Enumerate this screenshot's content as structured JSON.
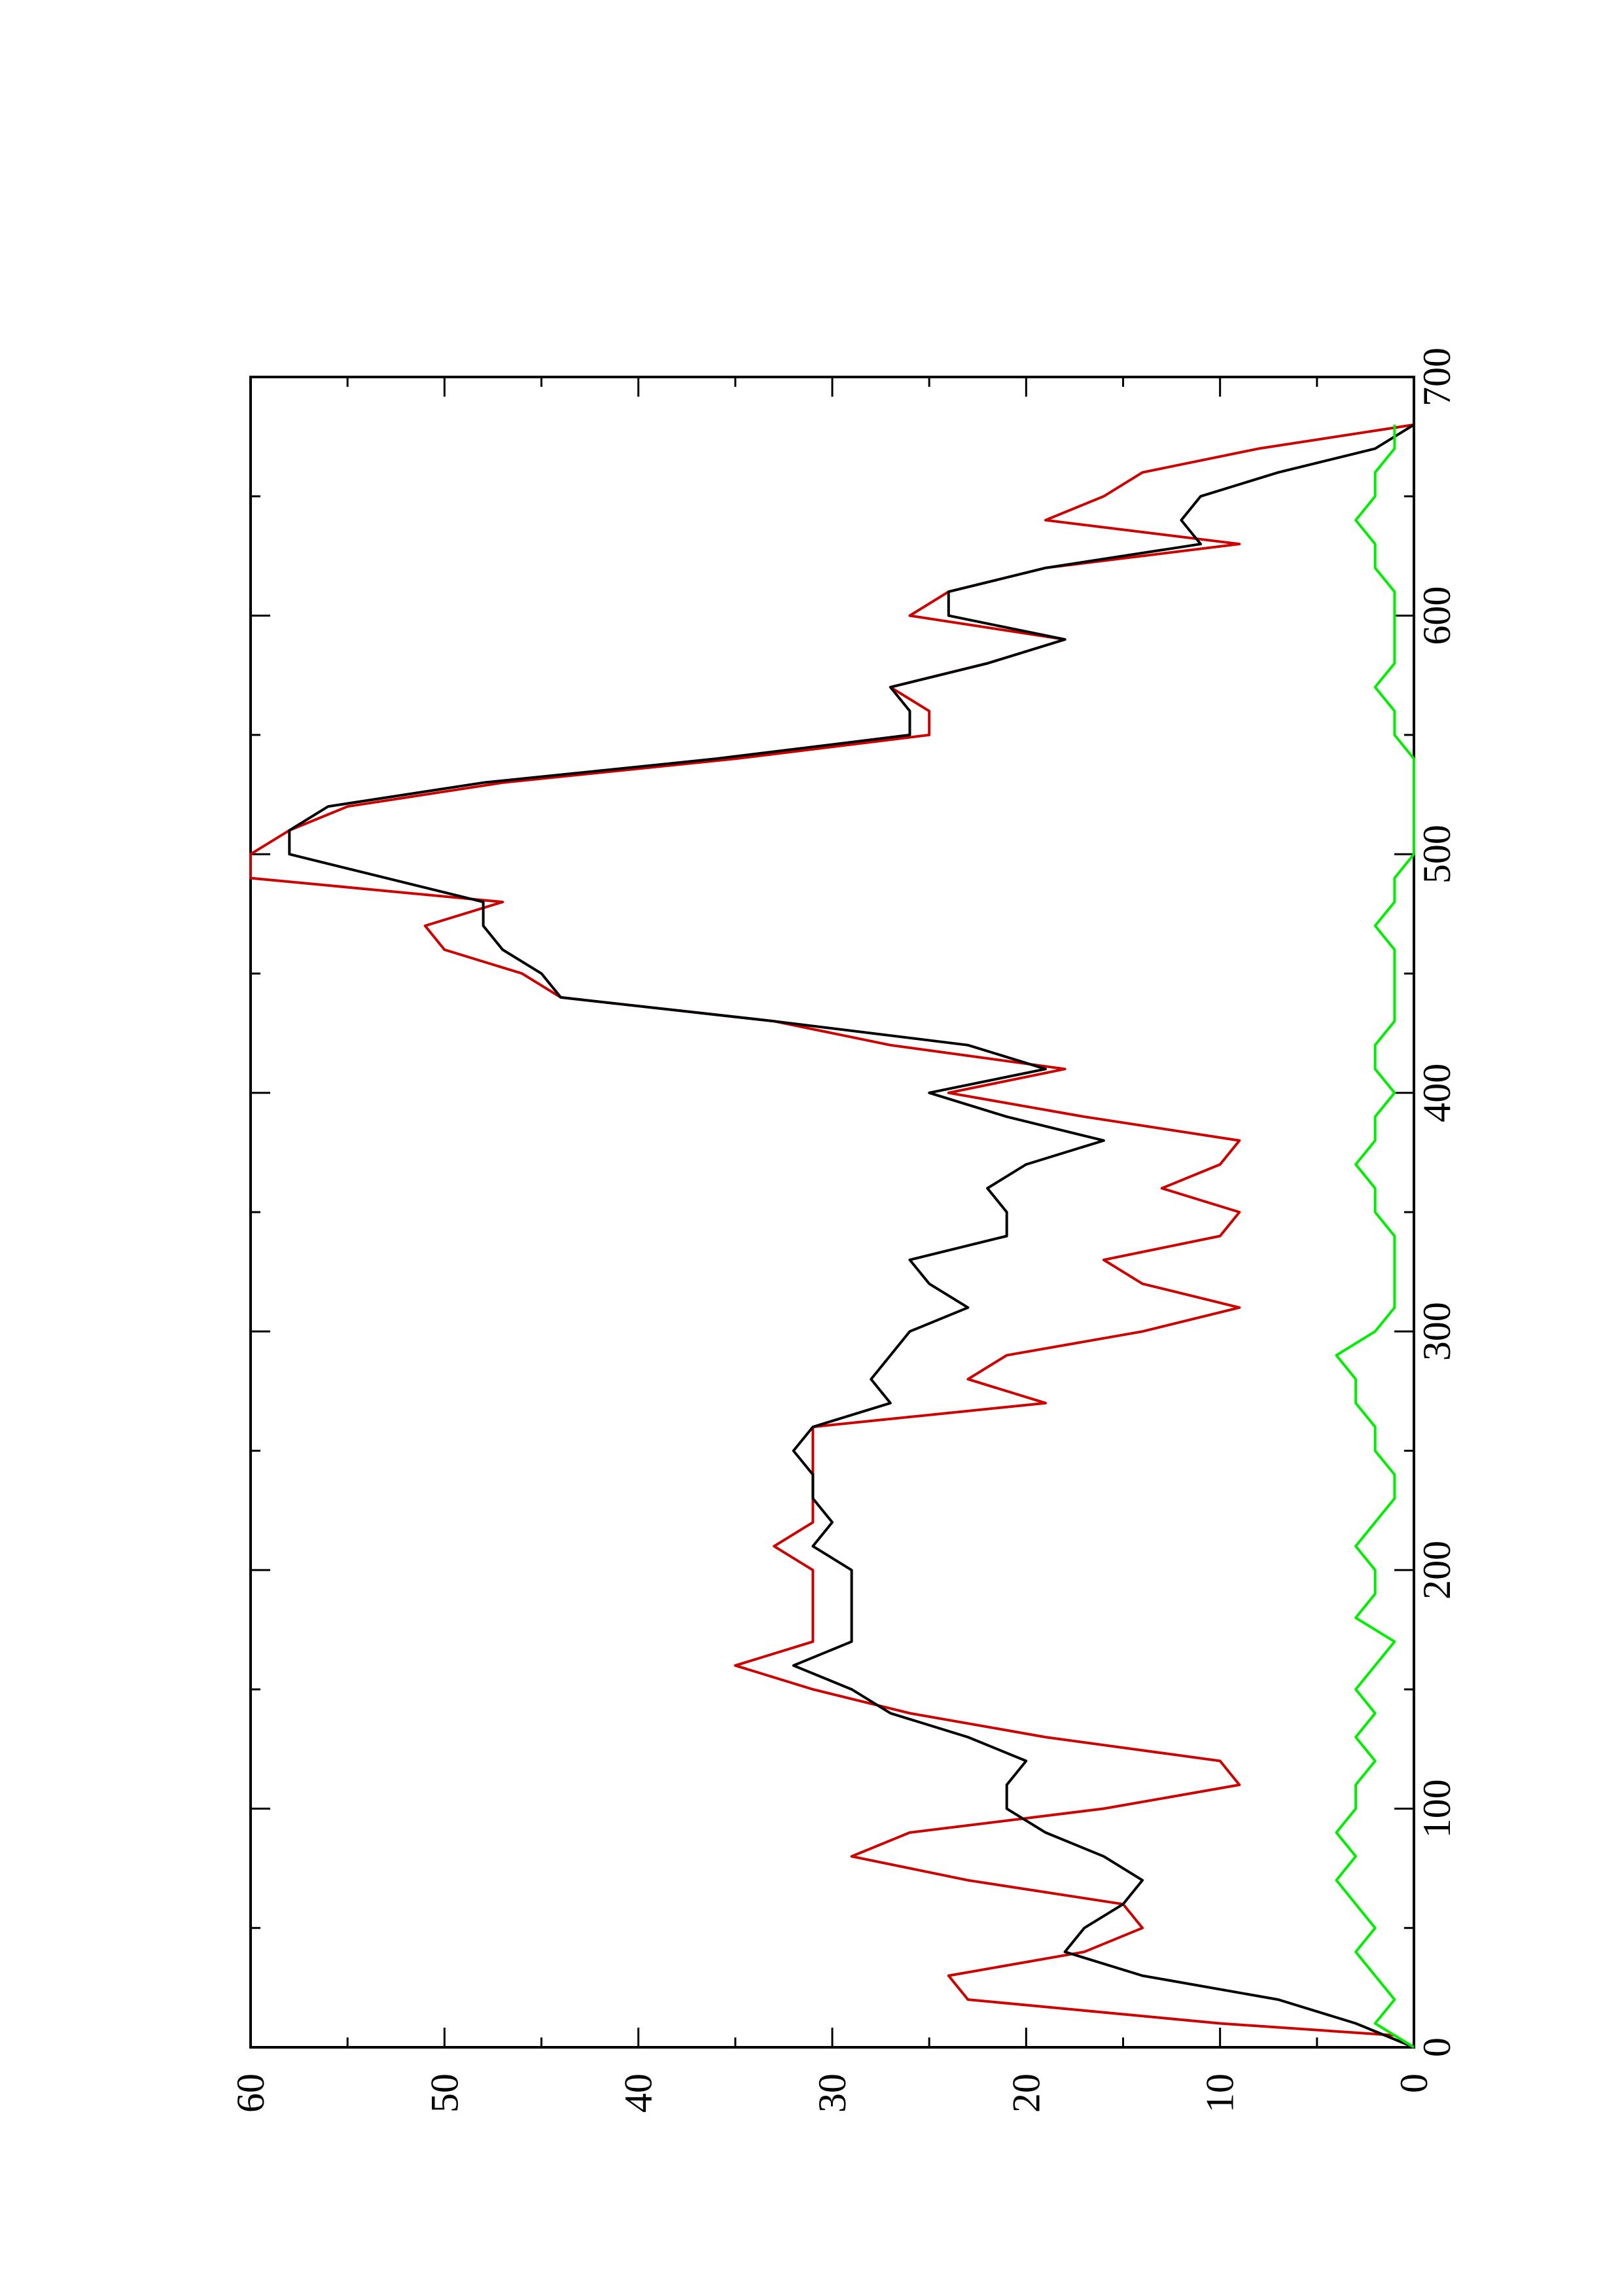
{
  "chart_data": {
    "type": "line",
    "orientation": "rotated-90-ccw",
    "title": "",
    "xlabel": "",
    "ylabel": "",
    "xlim": [
      0,
      700
    ],
    "ylim": [
      0,
      60
    ],
    "grid": false,
    "legend": "none",
    "x_ticks": [
      0,
      100,
      200,
      300,
      400,
      500,
      600,
      700
    ],
    "y_ticks": [
      0,
      10,
      20,
      30,
      40,
      50,
      60
    ],
    "series": [
      {
        "color": "#cc0000",
        "x": [
          0,
          5,
          10,
          20,
          30,
          40,
          50,
          60,
          70,
          80,
          90,
          100,
          110,
          120,
          130,
          140,
          150,
          160,
          170,
          180,
          190,
          200,
          210,
          220,
          230,
          240,
          250,
          260,
          270,
          280,
          290,
          300,
          310,
          320,
          330,
          340,
          350,
          360,
          370,
          380,
          390,
          400,
          410,
          420,
          430,
          440,
          450,
          460,
          470,
          480,
          490,
          500,
          510,
          520,
          530,
          540,
          550,
          560,
          570,
          580,
          590,
          600,
          610,
          620,
          630,
          640,
          650,
          660,
          670,
          680
        ],
        "y": [
          0,
          1,
          10,
          23,
          24,
          17,
          14,
          15,
          23,
          29,
          26,
          16,
          9,
          10,
          19,
          26,
          31,
          35,
          31,
          31,
          31,
          31,
          33,
          31,
          31,
          31,
          31,
          31,
          19,
          23,
          21,
          14,
          9,
          14,
          16,
          10,
          9,
          13,
          10,
          9,
          17,
          24,
          18,
          27,
          33,
          44,
          46,
          50,
          51,
          47,
          60,
          60,
          58,
          55,
          47,
          35,
          25,
          25,
          27,
          22,
          18,
          26,
          24,
          19,
          9,
          19,
          16,
          14,
          8,
          0
        ]
      },
      {
        "color": "#000000",
        "x": [
          0,
          10,
          20,
          30,
          40,
          50,
          60,
          70,
          80,
          90,
          100,
          110,
          120,
          130,
          140,
          150,
          160,
          170,
          180,
          190,
          200,
          210,
          220,
          230,
          240,
          250,
          260,
          270,
          280,
          290,
          300,
          310,
          320,
          330,
          340,
          350,
          360,
          370,
          380,
          390,
          400,
          410,
          420,
          430,
          440,
          450,
          460,
          470,
          480,
          490,
          500,
          510,
          520,
          530,
          540,
          550,
          560,
          570,
          580,
          590,
          600,
          610,
          620,
          630,
          640,
          650,
          660,
          670,
          680
        ],
        "y": [
          0,
          3,
          7,
          14,
          18,
          17,
          15,
          14,
          16,
          19,
          21,
          21,
          20,
          23,
          27,
          29,
          32,
          29,
          29,
          29,
          29,
          31,
          30,
          31,
          31,
          32,
          31,
          27,
          28,
          27,
          26,
          23,
          25,
          26,
          21,
          21,
          22,
          20,
          16,
          21,
          25,
          19,
          23,
          33,
          44,
          45,
          47,
          48,
          48,
          53,
          58,
          58,
          56,
          48,
          36,
          26,
          26,
          27,
          22,
          18,
          24,
          24,
          19,
          11,
          12,
          11,
          7,
          2,
          0
        ]
      },
      {
        "color": "#00ee00",
        "x": [
          0,
          10,
          20,
          30,
          40,
          50,
          60,
          70,
          80,
          90,
          100,
          110,
          120,
          130,
          140,
          150,
          160,
          170,
          180,
          190,
          200,
          210,
          220,
          230,
          240,
          250,
          260,
          270,
          280,
          290,
          300,
          310,
          320,
          330,
          340,
          350,
          360,
          370,
          380,
          390,
          400,
          410,
          420,
          430,
          440,
          450,
          460,
          470,
          480,
          490,
          500,
          510,
          520,
          530,
          540,
          550,
          560,
          570,
          580,
          590,
          600,
          610,
          620,
          630,
          640,
          650,
          660,
          670,
          680
        ],
        "y": [
          0,
          2,
          1,
          2,
          3,
          2,
          3,
          4,
          3,
          4,
          3,
          3,
          2,
          3,
          2,
          3,
          2,
          1,
          3,
          2,
          2,
          3,
          2,
          1,
          1,
          2,
          2,
          3,
          3,
          4,
          2,
          1,
          1,
          1,
          1,
          2,
          2,
          3,
          2,
          2,
          1,
          2,
          2,
          1,
          1,
          1,
          1,
          2,
          1,
          1,
          0,
          0,
          0,
          0,
          0,
          1,
          1,
          2,
          1,
          1,
          1,
          1,
          2,
          2,
          3,
          2,
          2,
          1,
          1
        ]
      }
    ]
  }
}
